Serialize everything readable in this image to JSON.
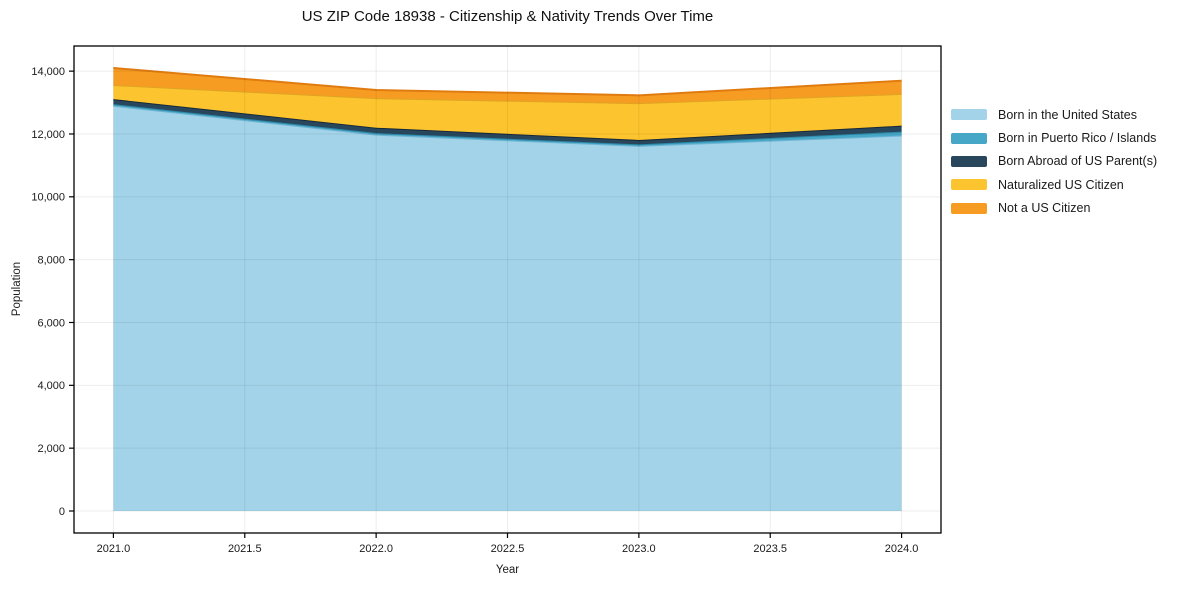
{
  "chart_data": {
    "type": "area",
    "stacked": true,
    "title": "US ZIP Code 18938 - Citizenship & Nativity Trends Over Time",
    "xlabel": "Year",
    "ylabel": "Population",
    "x": [
      2021,
      2022,
      2023,
      2024
    ],
    "series": [
      {
        "name": "Born in the United States",
        "color": "#a3d3e8",
        "edge_color": "#6fb4d4",
        "values": [
          12900,
          11980,
          11620,
          11950
        ]
      },
      {
        "name": "Born in Puerto Rico / Islands",
        "color": "#46a7c6",
        "edge_color": "#2e89a8",
        "values": [
          50,
          50,
          50,
          125
        ]
      },
      {
        "name": "Born Abroad of US Parent(s)",
        "color": "#28475d",
        "edge_color": "#16293a",
        "values": [
          160,
          170,
          140,
          190
        ]
      },
      {
        "name": "Naturalized US Citizen",
        "color": "#fcc42e",
        "edge_color": "#dfa423",
        "values": [
          450,
          940,
          1170,
          1010
        ]
      },
      {
        "name": "Not a US Citizen",
        "color": "#f79c23",
        "edge_color": "#e07b10",
        "values": [
          540,
          260,
          250,
          420
        ]
      }
    ],
    "stack_totals": [
      14100,
      13400,
      13230,
      13695
    ],
    "xlim": [
      2020.85,
      2024.15
    ],
    "ylim": [
      -700,
      14800
    ],
    "xticks": [
      2021.0,
      2021.5,
      2022.0,
      2022.5,
      2023.0,
      2023.5,
      2024.0
    ],
    "xtick_labels": [
      "2021.0",
      "2021.5",
      "2022.0",
      "2022.5",
      "2023.0",
      "2023.5",
      "2024.0"
    ],
    "yticks": [
      0,
      2000,
      4000,
      6000,
      8000,
      10000,
      12000,
      14000
    ],
    "ytick_labels": [
      "0",
      "2,000",
      "4,000",
      "6,000",
      "8,000",
      "10,000",
      "12,000",
      "14,000"
    ],
    "grid": true,
    "grid_color": "rgba(0,0,0,0.07)",
    "frame_color": "#000000",
    "legend_position": "right-outside"
  }
}
